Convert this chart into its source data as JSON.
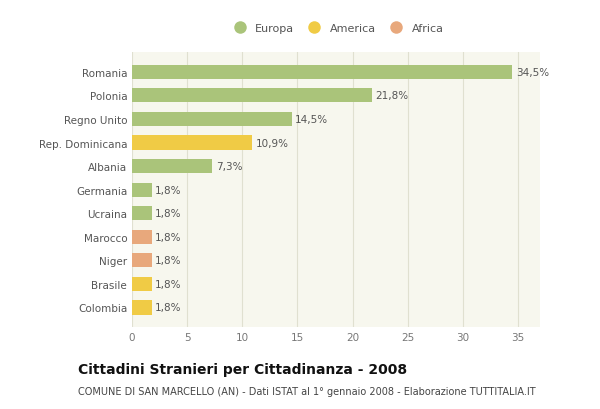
{
  "categories": [
    "Colombia",
    "Brasile",
    "Niger",
    "Marocco",
    "Ucraina",
    "Germania",
    "Albania",
    "Rep. Dominicana",
    "Regno Unito",
    "Polonia",
    "Romania"
  ],
  "values": [
    1.8,
    1.8,
    1.8,
    1.8,
    1.8,
    1.8,
    7.3,
    10.9,
    14.5,
    21.8,
    34.5
  ],
  "labels": [
    "1,8%",
    "1,8%",
    "1,8%",
    "1,8%",
    "1,8%",
    "1,8%",
    "7,3%",
    "10,9%",
    "14,5%",
    "21,8%",
    "34,5%"
  ],
  "colors": [
    "#f0cb45",
    "#f0cb45",
    "#e8a87c",
    "#e8a87c",
    "#aac47a",
    "#aac47a",
    "#aac47a",
    "#f0cb45",
    "#aac47a",
    "#aac47a",
    "#aac47a"
  ],
  "legend": [
    {
      "label": "Europa",
      "color": "#aac47a"
    },
    {
      "label": "America",
      "color": "#f0cb45"
    },
    {
      "label": "Africa",
      "color": "#e8a87c"
    }
  ],
  "title": "Cittadini Stranieri per Cittadinanza - 2008",
  "subtitle": "COMUNE DI SAN MARCELLO (AN) - Dati ISTAT al 1° gennaio 2008 - Elaborazione TUTTITALIA.IT",
  "xlim": [
    0,
    37
  ],
  "xticks": [
    0,
    5,
    10,
    15,
    20,
    25,
    30,
    35
  ],
  "background_color": "#ffffff",
  "plot_bg_color": "#f7f7ee",
  "grid_color": "#e0e0d0",
  "bar_height": 0.6,
  "label_fontsize": 7.5,
  "title_fontsize": 10,
  "subtitle_fontsize": 7,
  "ytick_fontsize": 7.5,
  "xtick_fontsize": 7.5,
  "legend_fontsize": 8
}
